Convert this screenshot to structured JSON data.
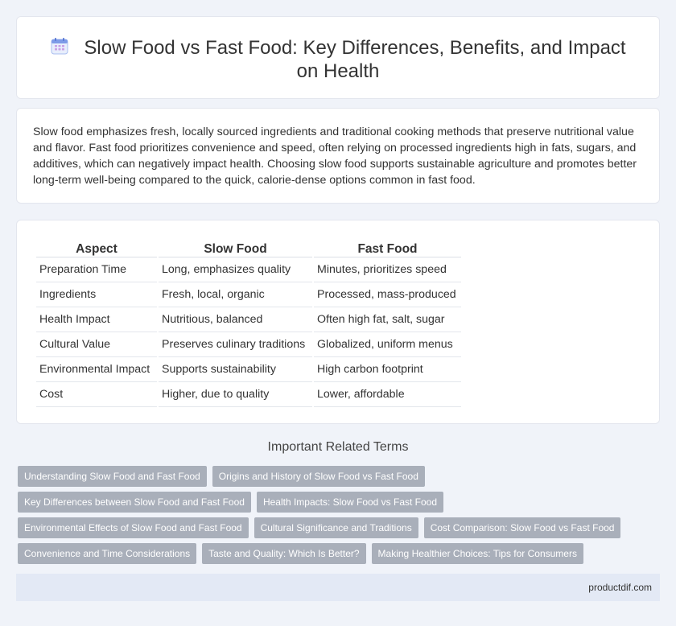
{
  "header": {
    "icon": "calendar-icon",
    "title": "Slow Food vs Fast Food: Key Differences, Benefits, and Impact on Health"
  },
  "intro": {
    "text": "Slow food emphasizes fresh, locally sourced ingredients and traditional cooking methods that preserve nutritional value and flavor. Fast food prioritizes convenience and speed, often relying on processed ingredients high in fats, sugars, and additives, which can negatively impact health. Choosing slow food supports sustainable agriculture and promotes better long-term well-being compared to the quick, calorie-dense options common in fast food."
  },
  "table": {
    "headers": [
      "Aspect",
      "Slow Food",
      "Fast Food"
    ],
    "rows": [
      [
        "Preparation Time",
        "Long, emphasizes quality",
        "Minutes, prioritizes speed"
      ],
      [
        "Ingredients",
        "Fresh, local, organic",
        "Processed, mass-produced"
      ],
      [
        "Health Impact",
        "Nutritious, balanced",
        "Often high fat, salt, sugar"
      ],
      [
        "Cultural Value",
        "Preserves culinary traditions",
        "Globalized, uniform menus"
      ],
      [
        "Environmental Impact",
        "Supports sustainability",
        "High carbon footprint"
      ],
      [
        "Cost",
        "Higher, due to quality",
        "Lower, affordable"
      ]
    ]
  },
  "related": {
    "title": "Important Related Terms",
    "tags": [
      "Understanding Slow Food and Fast Food",
      "Origins and History of Slow Food vs Fast Food",
      "Key Differences between Slow Food and Fast Food",
      "Health Impacts: Slow Food vs Fast Food",
      "Environmental Effects of Slow Food and Fast Food",
      "Cultural Significance and Traditions",
      "Cost Comparison: Slow Food vs Fast Food",
      "Convenience and Time Considerations",
      "Taste and Quality: Which Is Better?",
      "Making Healthier Choices: Tips for Consumers"
    ]
  },
  "footer": {
    "site": "productdif.com"
  },
  "colors": {
    "page_bg": "#f0f3f9",
    "tag_bg": "#a9afba",
    "footer_bg": "#e3e9f5",
    "icon_accent": "#6f8fe6"
  }
}
